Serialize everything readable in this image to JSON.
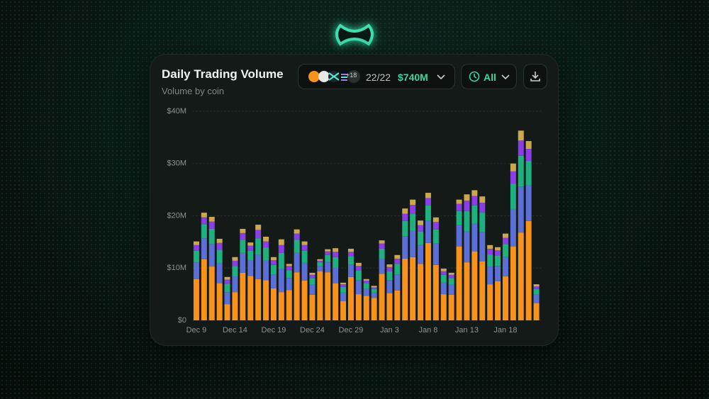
{
  "header": {
    "title": "Daily Trading Volume",
    "subtitle": "Volume by coin"
  },
  "toolbar": {
    "more_coins": "+18",
    "selected": "22/22",
    "total": "$740M",
    "range": "All"
  },
  "chart_data": {
    "type": "stacked_bar",
    "categories": [
      "Dec 9",
      null,
      null,
      null,
      null,
      "Dec 14",
      null,
      null,
      null,
      null,
      "Dec 19",
      null,
      null,
      null,
      null,
      "Dec 24",
      null,
      null,
      null,
      null,
      "Dec 29",
      null,
      null,
      null,
      null,
      "Jan 3",
      null,
      null,
      null,
      null,
      "Jan 8",
      null,
      null,
      null,
      null,
      "Jan 13",
      null,
      null,
      null,
      null,
      "Jan 18",
      null,
      null,
      null,
      null
    ],
    "series": [
      {
        "color": "#f7931a",
        "values": [
          7.9,
          11.7,
          10.3,
          7.1,
          3.1,
          5.4,
          9.1,
          8.5,
          7.9,
          7.7,
          6.1,
          5.4,
          5.8,
          9.2,
          7.6,
          4.9,
          9.4,
          9.2,
          7.1,
          3.7,
          8.3,
          5.0,
          4.7,
          4.3,
          8.9,
          5.2,
          5.7,
          11.8,
          12.1,
          10.8,
          14.8,
          10.6,
          5.0,
          4.9,
          14.1,
          11.1,
          13.2,
          11.3,
          6.9,
          7.5,
          8.4,
          14.1,
          16.8,
          19.0,
          3.3
        ]
      },
      {
        "color": "#5b6fd6",
        "values": [
          3.2,
          4.0,
          4.3,
          3.8,
          2.3,
          3.0,
          3.8,
          2.9,
          4.7,
          3.7,
          2.7,
          4.5,
          2.3,
          3.7,
          3.4,
          1.9,
          1.0,
          2.0,
          3.0,
          1.6,
          2.4,
          2.7,
          1.4,
          1.0,
          2.9,
          2.5,
          3.1,
          4.3,
          5.0,
          3.7,
          4.3,
          4.1,
          2.2,
          1.9,
          4.1,
          5.9,
          5.3,
          5.6,
          3.4,
          2.9,
          3.7,
          7.2,
          8.8,
          6.9,
          1.6
        ]
      },
      {
        "color": "#1fb07f",
        "values": [
          2.2,
          2.7,
          2.9,
          2.6,
          1.6,
          2.0,
          2.5,
          1.9,
          3.1,
          2.5,
          1.8,
          3.0,
          1.5,
          2.5,
          2.3,
          1.3,
          0.7,
          1.3,
          2.0,
          1.1,
          1.6,
          1.8,
          1.0,
          0.7,
          1.9,
          1.7,
          2.0,
          2.9,
          3.3,
          2.5,
          2.9,
          2.7,
          1.5,
          1.3,
          2.7,
          3.9,
          3.5,
          3.7,
          2.3,
          2.0,
          2.5,
          4.8,
          5.9,
          4.6,
          1.1
        ]
      },
      {
        "color": "#8b3ee8",
        "values": [
          1.1,
          1.3,
          1.4,
          1.3,
          0.8,
          1.0,
          1.3,
          1.0,
          1.6,
          1.2,
          0.9,
          1.5,
          0.8,
          1.2,
          1.1,
          0.6,
          0.3,
          0.7,
          1.0,
          0.5,
          0.8,
          0.9,
          0.5,
          0.3,
          1.0,
          0.8,
          1.0,
          1.4,
          1.7,
          1.2,
          1.4,
          1.4,
          0.7,
          0.6,
          1.4,
          2.0,
          1.8,
          1.9,
          1.1,
          1.0,
          1.2,
          2.4,
          2.9,
          2.3,
          0.5
        ]
      },
      {
        "color": "#c9a94a",
        "values": [
          0.7,
          0.9,
          0.9,
          0.8,
          0.5,
          0.7,
          0.8,
          0.6,
          1.0,
          0.9,
          0.6,
          1.1,
          0.4,
          0.8,
          0.7,
          0.4,
          0.3,
          0.4,
          0.7,
          0.3,
          0.6,
          0.6,
          0.3,
          0.3,
          0.6,
          0.5,
          0.7,
          1.0,
          1.0,
          0.9,
          1.0,
          0.9,
          0.5,
          0.4,
          0.8,
          1.2,
          1.1,
          1.2,
          0.7,
          0.6,
          0.8,
          1.5,
          1.9,
          1.5,
          0.4
        ]
      }
    ],
    "ylim": [
      0,
      40
    ],
    "yticks": [
      {
        "value": 0,
        "label": "$0"
      },
      {
        "value": 10,
        "label": "$10M"
      },
      {
        "value": 20,
        "label": "$20M"
      },
      {
        "value": 30,
        "label": "$30M"
      },
      {
        "value": 40,
        "label": "$40M"
      }
    ],
    "grid": true
  }
}
